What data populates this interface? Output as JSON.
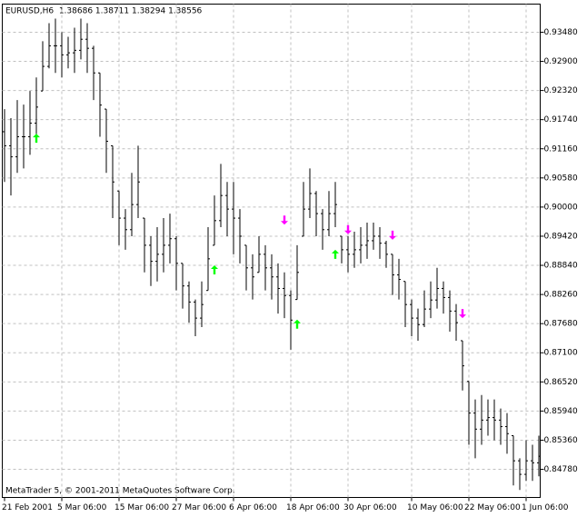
{
  "chart_data": {
    "type": "ohlc",
    "title": "EURUSD,H6  1.38686 1.38711 1.38294 1.38556",
    "footer": "MetaTrader 5, © 2001-2011 MetaQuotes Software Corp.",
    "color": "#000000",
    "grid": true,
    "ylim": [
      0.8422,
      0.9404
    ],
    "yticks": [
      {
        "value": 0.9348,
        "label": "0.93480"
      },
      {
        "value": 0.929,
        "label": "0.92900"
      },
      {
        "value": 0.9232,
        "label": "0.92320"
      },
      {
        "value": 0.9174,
        "label": "0.91740"
      },
      {
        "value": 0.9116,
        "label": "0.91160"
      },
      {
        "value": 0.9058,
        "label": "0.90580"
      },
      {
        "value": 0.9,
        "label": "0.90000"
      },
      {
        "value": 0.8942,
        "label": "0.89420"
      },
      {
        "value": 0.8884,
        "label": "0.88840"
      },
      {
        "value": 0.8826,
        "label": "0.88260"
      },
      {
        "value": 0.8768,
        "label": "0.87680"
      },
      {
        "value": 0.871,
        "label": "0.87100"
      },
      {
        "value": 0.8652,
        "label": "0.86520"
      },
      {
        "value": 0.8594,
        "label": "0.85940"
      },
      {
        "value": 0.8536,
        "label": "0.85360"
      },
      {
        "value": 0.8478,
        "label": "0.84780"
      }
    ],
    "x_labels": [
      {
        "value": 0,
        "label": "21 Feb 2001"
      },
      {
        "value": 9,
        "label": "5 Mar 06:00"
      },
      {
        "value": 18,
        "label": "15 Mar 06:00"
      },
      {
        "value": 27,
        "label": "27 Mar 06:00"
      },
      {
        "value": 36,
        "label": "6 Apr 06:00"
      },
      {
        "value": 45,
        "label": "18 Apr 06:00"
      },
      {
        "value": 54,
        "label": "30 Apr 06:00"
      },
      {
        "value": 64,
        "label": "10 May 06:00"
      },
      {
        "value": 73,
        "label": "22 May 06:00"
      },
      {
        "value": 82,
        "label": "1 Jun 06:00"
      }
    ],
    "open": [
      0.915,
      0.9122,
      0.91,
      0.914,
      0.914,
      0.9167,
      0.9231,
      0.928,
      0.9321,
      0.9321,
      0.9303,
      0.9307,
      0.9312,
      0.9334,
      0.9316,
      0.9267,
      0.9195,
      0.9122,
      0.9032,
      0.8978,
      0.8955,
      0.9005,
      0.8978,
      0.8924,
      0.8892,
      0.8906,
      0.8924,
      0.8937,
      0.8888,
      0.8843,
      0.8811,
      0.8779,
      0.8834,
      0.8924,
      0.8973,
      0.9023,
      0.8996,
      0.8978,
      0.8924,
      0.8879,
      0.887,
      0.8906,
      0.8879,
      0.8861,
      0.8838,
      0.8824,
      0.8816,
      0.8942,
      0.8996,
      0.9027,
      0.8987,
      0.8955,
      0.8987,
      0.8942,
      0.8915,
      0.8906,
      0.8915,
      0.8924,
      0.8933,
      0.8942,
      0.8928,
      0.8906,
      0.8865,
      0.8852,
      0.8806,
      0.8779,
      0.8766,
      0.8797,
      0.8815,
      0.8838,
      0.882,
      0.8793,
      0.8734,
      0.8653,
      0.859,
      0.8558,
      0.8576,
      0.8581,
      0.8576,
      0.8563,
      0.8545,
      0.8495,
      0.8468,
      0.8495,
      0.8491
    ],
    "high": [
      0.9195,
      0.9177,
      0.9213,
      0.9204,
      0.9231,
      0.9258,
      0.933,
      0.9366,
      0.9375,
      0.9348,
      0.9339,
      0.9357,
      0.9375,
      0.9366,
      0.9321,
      0.9267,
      0.9195,
      0.9122,
      0.9032,
      0.8996,
      0.9068,
      0.9122,
      0.8978,
      0.8942,
      0.896,
      0.8978,
      0.8987,
      0.8942,
      0.8888,
      0.8852,
      0.8816,
      0.8852,
      0.896,
      0.9023,
      0.9086,
      0.905,
      0.905,
      0.8996,
      0.8924,
      0.8906,
      0.8942,
      0.8924,
      0.8906,
      0.8888,
      0.887,
      0.8834,
      0.8924,
      0.905,
      0.9077,
      0.9032,
      0.8996,
      0.9032,
      0.905,
      0.8942,
      0.8942,
      0.8951,
      0.896,
      0.8969,
      0.8969,
      0.896,
      0.8933,
      0.8906,
      0.8897,
      0.8852,
      0.8816,
      0.8798,
      0.8834,
      0.8852,
      0.8879,
      0.8852,
      0.8834,
      0.8807,
      0.8734,
      0.8653,
      0.8617,
      0.8626,
      0.8617,
      0.8617,
      0.8599,
      0.859,
      0.8545,
      0.85,
      0.8536,
      0.8527,
      0.8545
    ],
    "low": [
      0.905,
      0.9023,
      0.9068,
      0.9077,
      0.9104,
      0.914,
      0.9231,
      0.9276,
      0.9267,
      0.9258,
      0.9276,
      0.9267,
      0.9294,
      0.9267,
      0.9213,
      0.914,
      0.9068,
      0.8978,
      0.8924,
      0.8915,
      0.8942,
      0.8978,
      0.887,
      0.8843,
      0.8852,
      0.887,
      0.8888,
      0.8834,
      0.8798,
      0.877,
      0.8743,
      0.8761,
      0.8834,
      0.8924,
      0.896,
      0.8942,
      0.8906,
      0.8888,
      0.8834,
      0.8816,
      0.887,
      0.8834,
      0.8816,
      0.8788,
      0.8779,
      0.8716,
      0.8816,
      0.8942,
      0.8978,
      0.8942,
      0.8915,
      0.8942,
      0.896,
      0.8888,
      0.887,
      0.8879,
      0.8888,
      0.8897,
      0.8915,
      0.8897,
      0.8879,
      0.8825,
      0.8816,
      0.8761,
      0.8743,
      0.8734,
      0.8761,
      0.8779,
      0.8798,
      0.8788,
      0.8752,
      0.8734,
      0.8635,
      0.8527,
      0.85,
      0.8527,
      0.8545,
      0.8536,
      0.8527,
      0.8509,
      0.8446,
      0.8437,
      0.8455,
      0.8455,
      0.8464
    ],
    "close": [
      0.9122,
      0.91,
      0.914,
      0.914,
      0.9167,
      0.9199,
      0.928,
      0.9321,
      0.9321,
      0.9303,
      0.9307,
      0.9312,
      0.9334,
      0.9316,
      0.9267,
      0.9203,
      0.9131,
      0.905,
      0.8978,
      0.8955,
      0.9005,
      0.905,
      0.8924,
      0.8892,
      0.8906,
      0.8924,
      0.8937,
      0.8888,
      0.8843,
      0.8811,
      0.8779,
      0.8806,
      0.8897,
      0.8973,
      0.9023,
      0.8996,
      0.8978,
      0.8942,
      0.8879,
      0.8861,
      0.8906,
      0.8879,
      0.8861,
      0.8838,
      0.8824,
      0.8775,
      0.887,
      0.8996,
      0.9027,
      0.8987,
      0.8955,
      0.8987,
      0.9005,
      0.8915,
      0.8906,
      0.8915,
      0.8924,
      0.8933,
      0.8942,
      0.8928,
      0.8906,
      0.8865,
      0.8856,
      0.8806,
      0.8779,
      0.8766,
      0.8797,
      0.8815,
      0.8838,
      0.882,
      0.8793,
      0.877,
      0.8684,
      0.859,
      0.8558,
      0.8576,
      0.8581,
      0.8576,
      0.8563,
      0.8549,
      0.8495,
      0.8468,
      0.8495,
      0.8491,
      0.8504
    ],
    "up_color": "#00ff00",
    "up_arrows": [
      {
        "index": 5,
        "value": 0.9137
      },
      {
        "index": 33,
        "value": 0.8875
      },
      {
        "index": 46,
        "value": 0.8767
      },
      {
        "index": 52,
        "value": 0.8906
      }
    ],
    "down_color": "#ff00ff",
    "down_arrows": [
      {
        "index": 44,
        "value": 0.8974
      },
      {
        "index": 54,
        "value": 0.8955
      },
      {
        "index": 61,
        "value": 0.8944
      },
      {
        "index": 72,
        "value": 0.8788
      }
    ]
  }
}
